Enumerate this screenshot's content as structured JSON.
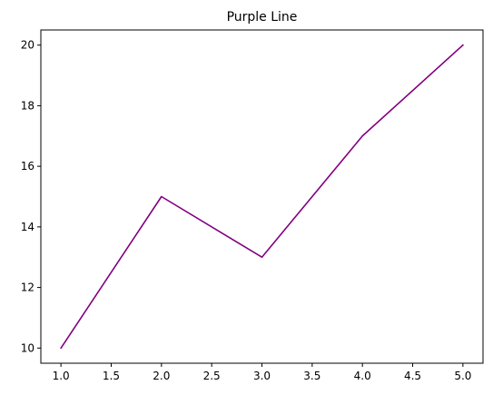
{
  "chart_data": {
    "type": "line",
    "title": "Purple Line",
    "xlabel": "",
    "ylabel": "",
    "xlim": [
      0.8,
      5.2
    ],
    "ylim": [
      9.5,
      20.5
    ],
    "x_ticks": [
      1.0,
      1.5,
      2.0,
      2.5,
      3.0,
      3.5,
      4.0,
      4.5,
      5.0
    ],
    "x_tick_labels": [
      "1.0",
      "1.5",
      "2.0",
      "2.5",
      "3.0",
      "3.5",
      "4.0",
      "4.5",
      "5.0"
    ],
    "y_ticks": [
      10,
      12,
      14,
      16,
      18,
      20
    ],
    "y_tick_labels": [
      "10",
      "12",
      "14",
      "16",
      "18",
      "20"
    ],
    "grid": false,
    "series": [
      {
        "color": "#800080",
        "x": [
          1,
          2,
          3,
          4,
          5
        ],
        "y": [
          10,
          15,
          13,
          17,
          20
        ]
      }
    ]
  }
}
